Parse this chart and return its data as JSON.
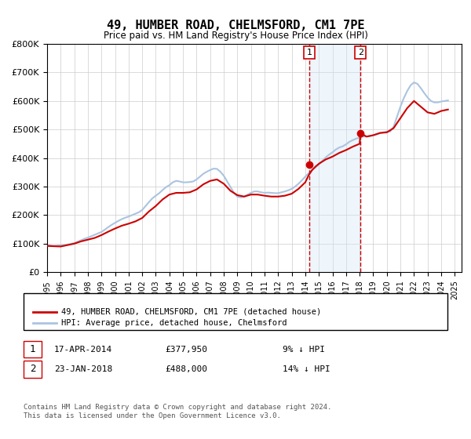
{
  "title": "49, HUMBER ROAD, CHELMSFORD, CM1 7PE",
  "subtitle": "Price paid vs. HM Land Registry's House Price Index (HPI)",
  "title_fontsize": 11,
  "subtitle_fontsize": 9,
  "ylabel": "",
  "xlabel": "",
  "ylim": [
    0,
    800000
  ],
  "xlim_start": 1995.0,
  "xlim_end": 2025.5,
  "yticks": [
    0,
    100000,
    200000,
    300000,
    400000,
    500000,
    600000,
    700000,
    800000
  ],
  "ytick_labels": [
    "£0",
    "£100K",
    "£200K",
    "£300K",
    "£400K",
    "£500K",
    "£600K",
    "£700K",
    "£800K"
  ],
  "xticks": [
    1995,
    1996,
    1997,
    1998,
    1999,
    2000,
    2001,
    2002,
    2003,
    2004,
    2005,
    2006,
    2007,
    2008,
    2009,
    2010,
    2011,
    2012,
    2013,
    2014,
    2015,
    2016,
    2017,
    2018,
    2019,
    2020,
    2021,
    2022,
    2023,
    2024,
    2025
  ],
  "hpi_color": "#aac4e0",
  "property_color": "#cc0000",
  "vline_color": "#cc0000",
  "shade_color": "#d0e4f5",
  "transaction1_date": 2014.29,
  "transaction1_price": 377950,
  "transaction2_date": 2018.06,
  "transaction2_price": 488000,
  "footnote": "Contains HM Land Registry data © Crown copyright and database right 2024.\nThis data is licensed under the Open Government Licence v3.0.",
  "legend_property": "49, HUMBER ROAD, CHELMSFORD, CM1 7PE (detached house)",
  "legend_hpi": "HPI: Average price, detached house, Chelmsford",
  "table_row1_num": "1",
  "table_row1_date": "17-APR-2014",
  "table_row1_price": "£377,950",
  "table_row1_note": "9% ↓ HPI",
  "table_row2_num": "2",
  "table_row2_date": "23-JAN-2018",
  "table_row2_price": "£488,000",
  "table_row2_note": "14% ↓ HPI",
  "hpi_data_x": [
    1995.0,
    1995.25,
    1995.5,
    1995.75,
    1996.0,
    1996.25,
    1996.5,
    1996.75,
    1997.0,
    1997.25,
    1997.5,
    1997.75,
    1998.0,
    1998.25,
    1998.5,
    1998.75,
    1999.0,
    1999.25,
    1999.5,
    1999.75,
    2000.0,
    2000.25,
    2000.5,
    2000.75,
    2001.0,
    2001.25,
    2001.5,
    2001.75,
    2002.0,
    2002.25,
    2002.5,
    2002.75,
    2003.0,
    2003.25,
    2003.5,
    2003.75,
    2004.0,
    2004.25,
    2004.5,
    2004.75,
    2005.0,
    2005.25,
    2005.5,
    2005.75,
    2006.0,
    2006.25,
    2006.5,
    2006.75,
    2007.0,
    2007.25,
    2007.5,
    2007.75,
    2008.0,
    2008.25,
    2008.5,
    2008.75,
    2009.0,
    2009.25,
    2009.5,
    2009.75,
    2010.0,
    2010.25,
    2010.5,
    2010.75,
    2011.0,
    2011.25,
    2011.5,
    2011.75,
    2012.0,
    2012.25,
    2012.5,
    2012.75,
    2013.0,
    2013.25,
    2013.5,
    2013.75,
    2014.0,
    2014.25,
    2014.5,
    2014.75,
    2015.0,
    2015.25,
    2015.5,
    2015.75,
    2016.0,
    2016.25,
    2016.5,
    2016.75,
    2017.0,
    2017.25,
    2017.5,
    2017.75,
    2018.0,
    2018.25,
    2018.5,
    2018.75,
    2019.0,
    2019.25,
    2019.5,
    2019.75,
    2020.0,
    2020.25,
    2020.5,
    2020.75,
    2021.0,
    2021.25,
    2021.5,
    2021.75,
    2022.0,
    2022.25,
    2022.5,
    2022.75,
    2023.0,
    2023.25,
    2023.5,
    2023.75,
    2024.0,
    2024.25,
    2024.5
  ],
  "hpi_data_y": [
    95000,
    93000,
    92000,
    93000,
    94000,
    95000,
    97000,
    99000,
    102000,
    107000,
    112000,
    117000,
    121000,
    126000,
    131000,
    136000,
    141000,
    149000,
    158000,
    166000,
    173000,
    180000,
    186000,
    191000,
    195000,
    200000,
    205000,
    210000,
    218000,
    232000,
    246000,
    259000,
    268000,
    277000,
    288000,
    298000,
    305000,
    315000,
    320000,
    318000,
    315000,
    315000,
    316000,
    318000,
    325000,
    335000,
    345000,
    352000,
    358000,
    363000,
    362000,
    352000,
    338000,
    318000,
    298000,
    278000,
    265000,
    262000,
    265000,
    272000,
    278000,
    283000,
    283000,
    280000,
    278000,
    279000,
    278000,
    277000,
    277000,
    280000,
    283000,
    287000,
    292000,
    300000,
    310000,
    322000,
    335000,
    347000,
    357000,
    367000,
    378000,
    390000,
    402000,
    412000,
    420000,
    430000,
    437000,
    441000,
    448000,
    457000,
    463000,
    468000,
    472000,
    475000,
    476000,
    477000,
    480000,
    483000,
    487000,
    490000,
    493000,
    493000,
    510000,
    545000,
    580000,
    610000,
    635000,
    655000,
    665000,
    660000,
    645000,
    628000,
    612000,
    600000,
    595000,
    595000,
    598000,
    600000,
    602000
  ],
  "property_data_x": [
    1995.0,
    1996.0,
    1997.0,
    1997.5,
    1998.0,
    1998.5,
    1999.0,
    1999.5,
    2000.0,
    2000.5,
    2001.0,
    2001.5,
    2002.0,
    2002.5,
    2003.0,
    2003.5,
    2004.0,
    2004.5,
    2005.0,
    2005.5,
    2006.0,
    2006.5,
    2007.0,
    2007.5,
    2008.0,
    2008.5,
    2009.0,
    2009.5,
    2010.0,
    2010.5,
    2011.0,
    2011.5,
    2012.0,
    2012.5,
    2013.0,
    2013.5,
    2014.0,
    2014.25,
    2014.5,
    2014.75,
    2015.0,
    2015.5,
    2016.0,
    2016.5,
    2017.0,
    2017.5,
    2018.0,
    2018.06,
    2018.5,
    2019.0,
    2019.5,
    2020.0,
    2020.5,
    2021.0,
    2021.5,
    2022.0,
    2022.5,
    2023.0,
    2023.5,
    2024.0,
    2024.5
  ],
  "property_data_y": [
    92000,
    90000,
    100000,
    108000,
    114000,
    120000,
    130000,
    142000,
    153000,
    163000,
    170000,
    178000,
    190000,
    213000,
    232000,
    255000,
    272000,
    278000,
    278000,
    280000,
    290000,
    308000,
    320000,
    325000,
    310000,
    285000,
    270000,
    265000,
    272000,
    272000,
    268000,
    265000,
    265000,
    268000,
    275000,
    292000,
    315000,
    340000,
    358000,
    370000,
    380000,
    395000,
    405000,
    418000,
    428000,
    440000,
    450000,
    488000,
    475000,
    480000,
    488000,
    490000,
    505000,
    540000,
    575000,
    600000,
    580000,
    560000,
    555000,
    565000,
    570000
  ]
}
